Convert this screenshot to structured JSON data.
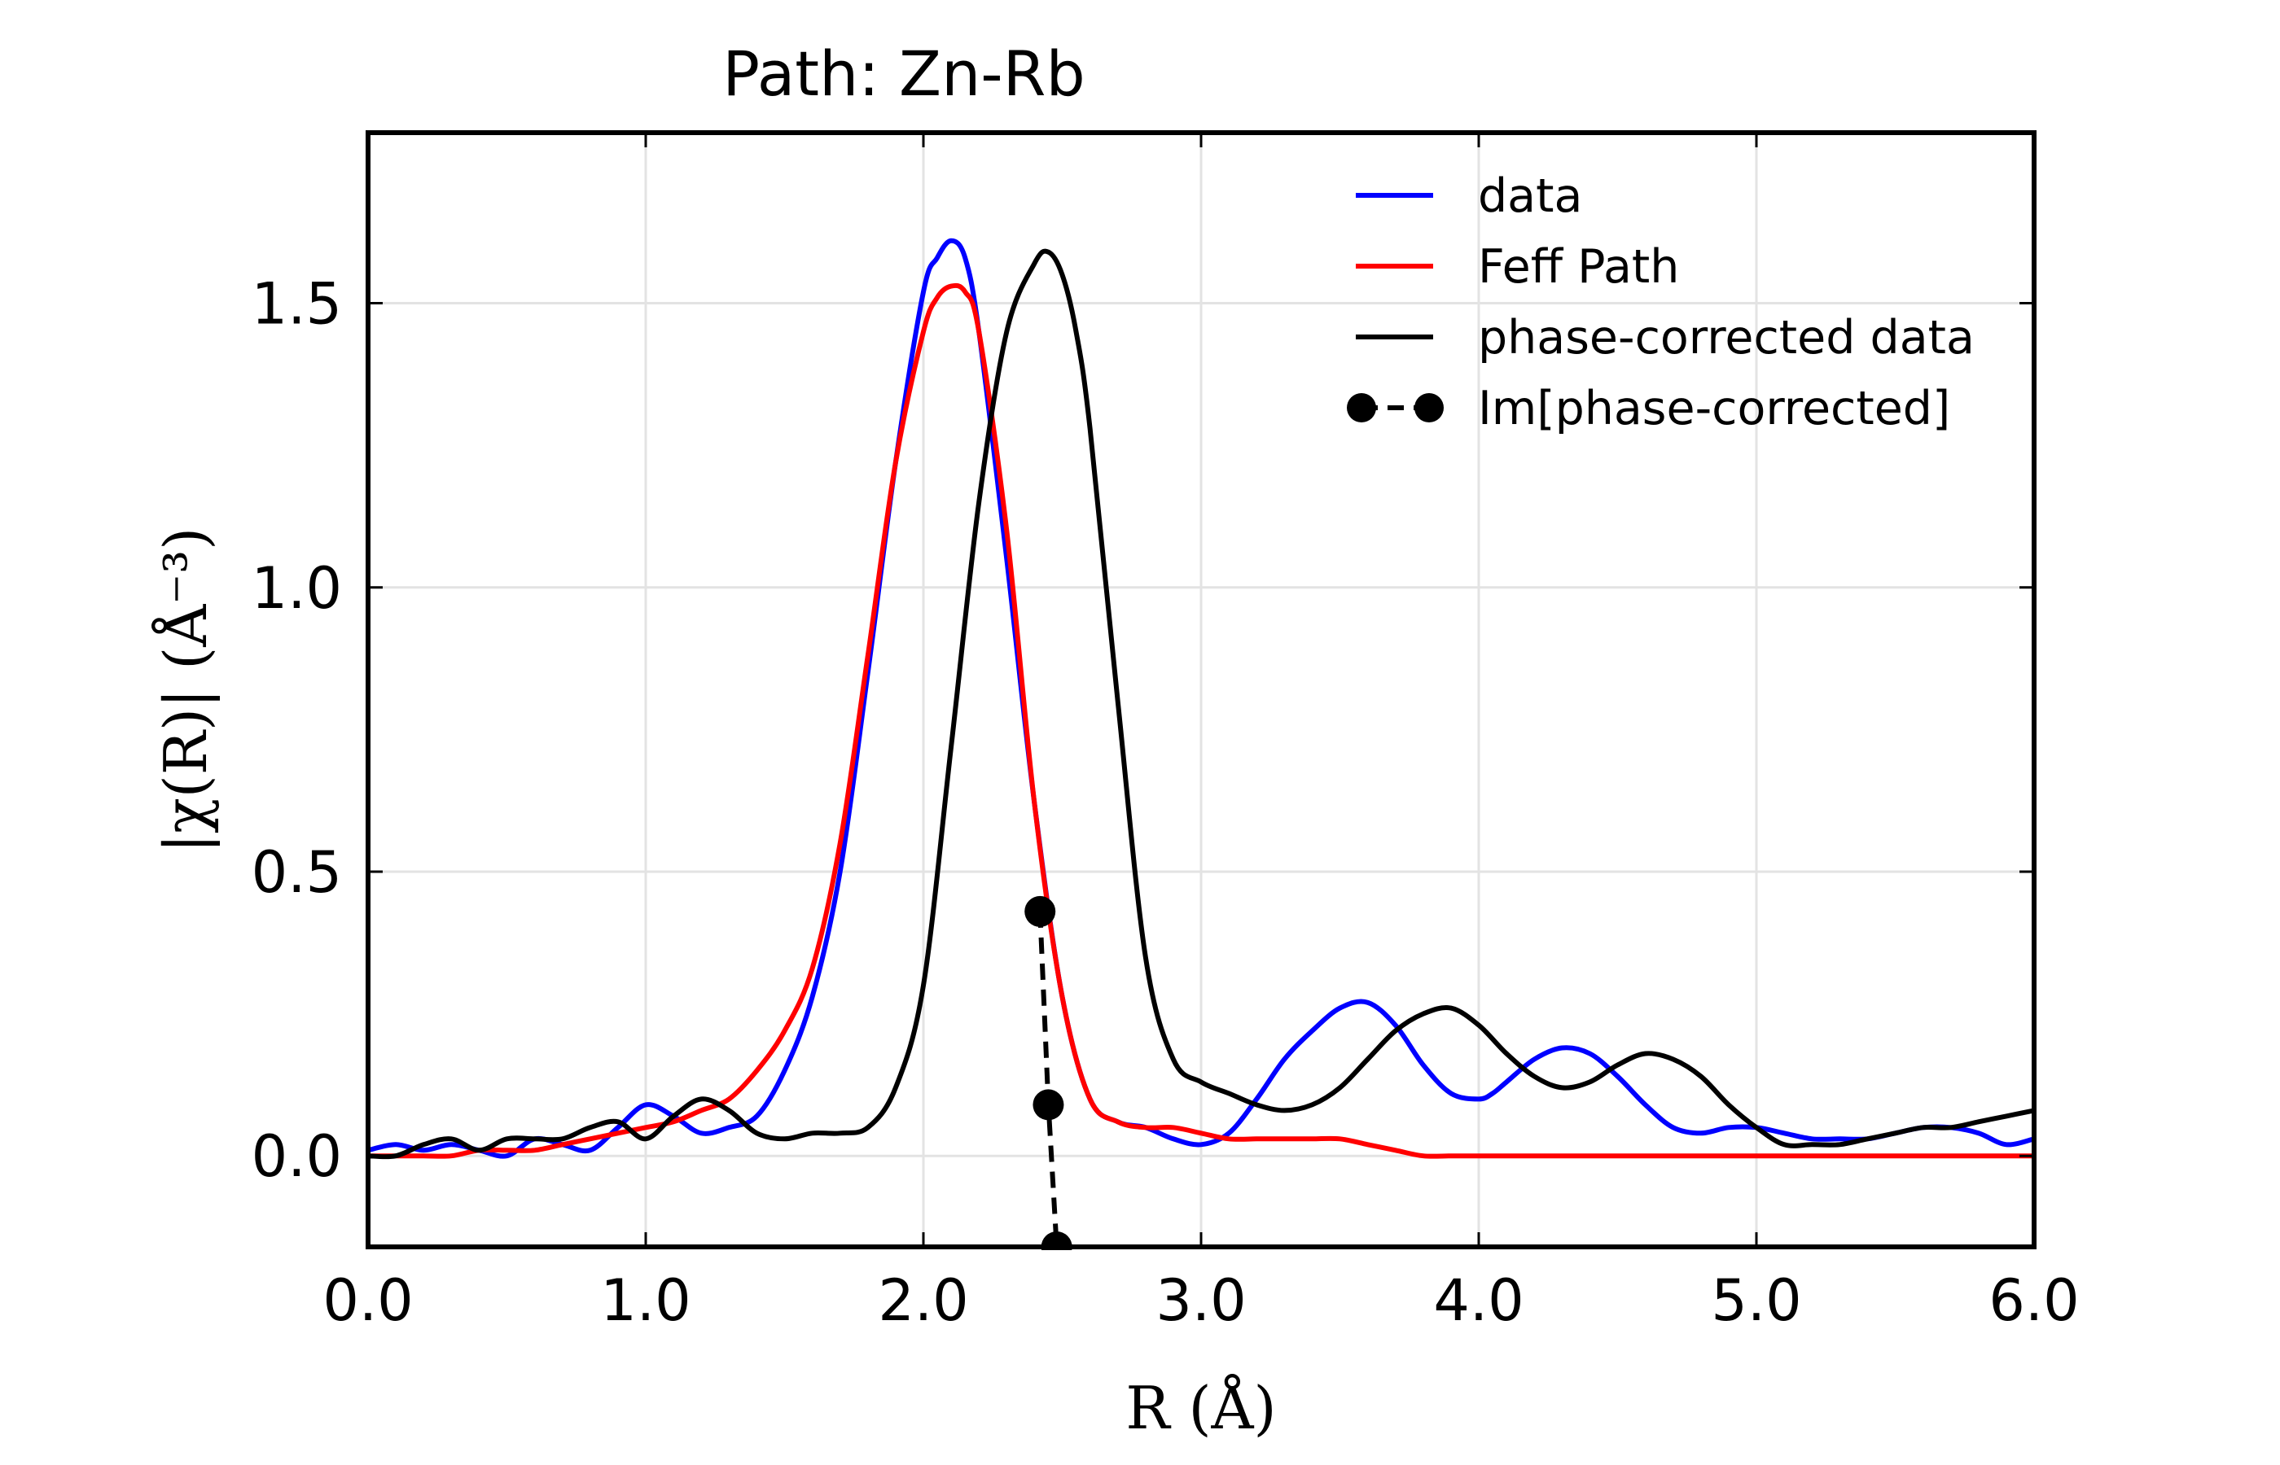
{
  "chart_data": {
    "type": "line",
    "title": "Path: Zn-Rb",
    "xlabel": "R (Å)",
    "ylabel": "|χ(R)| (Å⁻³)",
    "xlim": [
      0.0,
      6.0
    ],
    "ylim": [
      -0.16,
      1.8
    ],
    "xticks": [
      0,
      1,
      2,
      3,
      4,
      5,
      6
    ],
    "xtick_labels": [
      "0.0",
      "1.0",
      "2.0",
      "3.0",
      "4.0",
      "5.0",
      "6.0"
    ],
    "yticks": [
      0.0,
      0.5,
      1.0,
      1.5
    ],
    "ytick_labels": [
      "0.0",
      "0.5",
      "1.0",
      "1.5"
    ],
    "grid": true,
    "legend_position": "top-right",
    "series": [
      {
        "name": "data",
        "color": "#0000ff",
        "style": "solid",
        "x": [
          0.0,
          0.1,
          0.2,
          0.3,
          0.4,
          0.5,
          0.6,
          0.7,
          0.8,
          0.9,
          1.0,
          1.1,
          1.2,
          1.3,
          1.4,
          1.5,
          1.6,
          1.7,
          1.8,
          1.9,
          2.0,
          2.05,
          2.1,
          2.15,
          2.2,
          2.3,
          2.4,
          2.5,
          2.6,
          2.7,
          2.8,
          2.9,
          3.0,
          3.1,
          3.2,
          3.3,
          3.4,
          3.5,
          3.6,
          3.7,
          3.8,
          3.9,
          4.0,
          4.05,
          4.1,
          4.2,
          4.3,
          4.4,
          4.5,
          4.6,
          4.7,
          4.8,
          4.9,
          5.0,
          5.1,
          5.2,
          5.3,
          5.4,
          5.5,
          5.6,
          5.7,
          5.8,
          5.9,
          6.0
        ],
        "y": [
          0.01,
          0.02,
          0.01,
          0.02,
          0.01,
          0.0,
          0.03,
          0.02,
          0.01,
          0.05,
          0.09,
          0.07,
          0.04,
          0.05,
          0.07,
          0.15,
          0.28,
          0.5,
          0.85,
          1.22,
          1.52,
          1.58,
          1.61,
          1.58,
          1.45,
          1.05,
          0.62,
          0.28,
          0.1,
          0.06,
          0.05,
          0.03,
          0.02,
          0.04,
          0.1,
          0.17,
          0.22,
          0.26,
          0.27,
          0.23,
          0.16,
          0.11,
          0.1,
          0.11,
          0.13,
          0.17,
          0.19,
          0.18,
          0.14,
          0.09,
          0.05,
          0.04,
          0.05,
          0.05,
          0.04,
          0.03,
          0.03,
          0.03,
          0.04,
          0.05,
          0.05,
          0.04,
          0.02,
          0.03
        ]
      },
      {
        "name": "Feff Path",
        "color": "#ff0000",
        "style": "solid",
        "x": [
          0.0,
          0.1,
          0.2,
          0.3,
          0.4,
          0.5,
          0.6,
          0.7,
          0.8,
          0.9,
          1.0,
          1.1,
          1.2,
          1.3,
          1.4,
          1.5,
          1.6,
          1.7,
          1.8,
          1.9,
          2.0,
          2.05,
          2.1,
          2.15,
          2.2,
          2.3,
          2.4,
          2.5,
          2.6,
          2.7,
          2.8,
          2.9,
          3.0,
          3.1,
          3.2,
          3.3,
          3.4,
          3.5,
          3.6,
          3.7,
          3.8,
          3.9,
          4.0,
          4.5,
          5.0,
          5.5,
          6.0
        ],
        "y": [
          0.0,
          0.0,
          0.0,
          0.0,
          0.01,
          0.01,
          0.01,
          0.02,
          0.03,
          0.04,
          0.05,
          0.06,
          0.08,
          0.1,
          0.15,
          0.22,
          0.33,
          0.55,
          0.88,
          1.22,
          1.45,
          1.51,
          1.53,
          1.52,
          1.45,
          1.1,
          0.62,
          0.28,
          0.1,
          0.06,
          0.05,
          0.05,
          0.04,
          0.03,
          0.03,
          0.03,
          0.03,
          0.03,
          0.02,
          0.01,
          0.0,
          0.0,
          0.0,
          0.0,
          0.0,
          0.0,
          0.0
        ]
      },
      {
        "name": "phase-corrected data",
        "color": "#000000",
        "style": "solid",
        "x": [
          0.0,
          0.1,
          0.2,
          0.3,
          0.4,
          0.5,
          0.6,
          0.7,
          0.8,
          0.9,
          1.0,
          1.1,
          1.2,
          1.3,
          1.4,
          1.5,
          1.6,
          1.7,
          1.8,
          1.9,
          2.0,
          2.1,
          2.2,
          2.3,
          2.4,
          2.45,
          2.5,
          2.55,
          2.6,
          2.7,
          2.8,
          2.9,
          3.0,
          3.1,
          3.2,
          3.3,
          3.4,
          3.5,
          3.6,
          3.7,
          3.8,
          3.9,
          4.0,
          4.1,
          4.2,
          4.3,
          4.4,
          4.5,
          4.6,
          4.7,
          4.8,
          4.9,
          5.0,
          5.1,
          5.2,
          5.3,
          5.4,
          5.5,
          5.6,
          5.7,
          5.8,
          5.9,
          6.0
        ],
        "y": [
          0.0,
          0.0,
          0.02,
          0.03,
          0.01,
          0.03,
          0.03,
          0.03,
          0.05,
          0.06,
          0.03,
          0.07,
          0.1,
          0.08,
          0.04,
          0.03,
          0.04,
          0.04,
          0.05,
          0.12,
          0.3,
          0.72,
          1.15,
          1.45,
          1.57,
          1.59,
          1.55,
          1.45,
          1.28,
          0.8,
          0.35,
          0.17,
          0.13,
          0.11,
          0.09,
          0.08,
          0.09,
          0.12,
          0.17,
          0.22,
          0.25,
          0.26,
          0.23,
          0.18,
          0.14,
          0.12,
          0.13,
          0.16,
          0.18,
          0.17,
          0.14,
          0.09,
          0.05,
          0.02,
          0.02,
          0.02,
          0.03,
          0.04,
          0.05,
          0.05,
          0.06,
          0.07,
          0.08
        ]
      },
      {
        "name": "Im[phase-corrected]",
        "color": "#000000",
        "style": "dashed-markers",
        "x": [
          2.42,
          2.45,
          2.48
        ],
        "y": [
          0.43,
          0.09,
          -0.16
        ]
      }
    ]
  }
}
